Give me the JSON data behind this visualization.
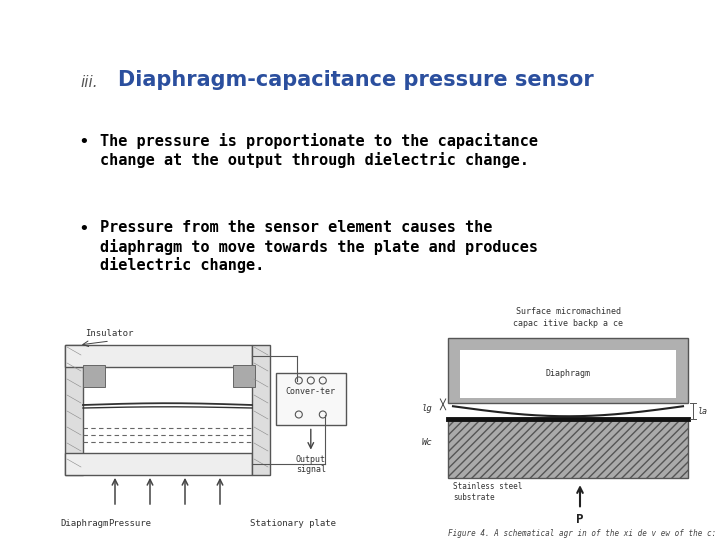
{
  "background_color": "#ffffff",
  "title_prefix": "iii.",
  "title_text": "Diaphragm-capacitance pressure sensor",
  "title_color": "#2B4F9E",
  "title_prefix_color": "#555555",
  "title_fontsize": 15,
  "title_prefix_fontsize": 11,
  "bullet1_line1": "The pressure is proportionate to the capacitance",
  "bullet1_line2": "change at the output through dielectric change.",
  "bullet2_line1": "Pressure from the sensor element causes the",
  "bullet2_line2": "diaphragm to move towards the plate and produces",
  "bullet2_line3": "dielectric change.",
  "bullet_fontsize": 11,
  "bullet_color": "#000000",
  "fig_width": 7.2,
  "fig_height": 5.4,
  "fig_dpi": 100
}
